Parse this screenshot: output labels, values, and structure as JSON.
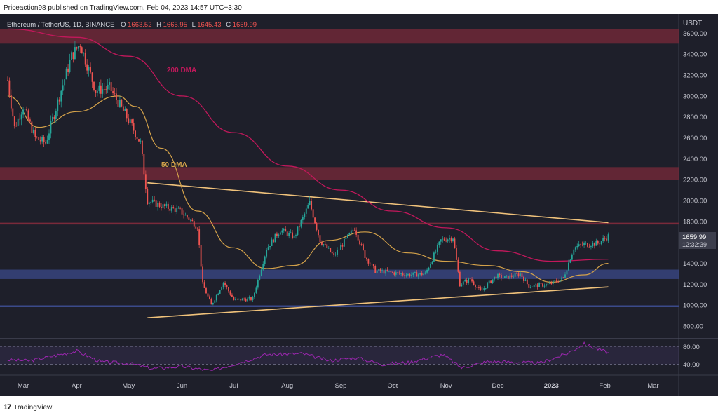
{
  "header": {
    "text": "Priceaction98 published on TradingView.com, Feb 04, 2023 14:57 UTC+3:30"
  },
  "symbol": {
    "name": "Ethereum / TetherUS, 1D, BINANCE",
    "o_label": "O",
    "o_value": "1663.52",
    "h_label": "H",
    "h_value": "1665.95",
    "l_label": "L",
    "l_value": "1645.43",
    "c_label": "C",
    "c_value": "1659.99"
  },
  "footer": {
    "logo_text": "17",
    "brand": "TradingView"
  },
  "colors": {
    "background": "#1e1f2a",
    "candle_up": "#26a69a",
    "candle_down": "#ef5350",
    "dma200": "#c2185b",
    "dma50": "#d4a24a",
    "trendline": "#f0c27b",
    "resistance_zone": "#7a2a3a",
    "support_zone": "#3b4a8a",
    "rsi": "#9c27b0"
  },
  "chart_data": {
    "type": "line",
    "title": "Ethereum / TetherUS, 1D, BINANCE",
    "price_unit": "USDT",
    "x_ticks": [
      "Mar",
      "Apr",
      "May",
      "Jun",
      "Jul",
      "Aug",
      "Sep",
      "Oct",
      "Nov",
      "Dec",
      "2023",
      "Feb",
      "Mar"
    ],
    "y_ticks": [
      800,
      1000,
      1200,
      1400,
      1600,
      1800,
      2000,
      2200,
      2400,
      2600,
      2800,
      3000,
      3200,
      3400,
      3600
    ],
    "ylim": [
      700,
      3750
    ],
    "last_price": {
      "value": "1659.99",
      "countdown": "12:32:39"
    },
    "price_series": {
      "name": "ETH/USDT close",
      "x": [
        "2022-02-20",
        "2022-02-24",
        "2022-03-01",
        "2022-03-08",
        "2022-03-14",
        "2022-03-22",
        "2022-03-29",
        "2022-04-03",
        "2022-04-12",
        "2022-04-20",
        "2022-04-30",
        "2022-05-08",
        "2022-05-12",
        "2022-05-20",
        "2022-05-31",
        "2022-06-10",
        "2022-06-13",
        "2022-06-18",
        "2022-06-25",
        "2022-07-01",
        "2022-07-12",
        "2022-07-20",
        "2022-07-28",
        "2022-08-05",
        "2022-08-14",
        "2022-08-20",
        "2022-08-28",
        "2022-09-09",
        "2022-09-15",
        "2022-09-21",
        "2022-10-01",
        "2022-10-10",
        "2022-10-20",
        "2022-10-29",
        "2022-11-05",
        "2022-11-09",
        "2022-11-15",
        "2022-11-21",
        "2022-11-30",
        "2022-12-05",
        "2022-12-14",
        "2022-12-19",
        "2022-12-31",
        "2023-01-08",
        "2023-01-14",
        "2023-01-20",
        "2023-01-28",
        "2023-02-03"
      ],
      "y": [
        3150,
        2700,
        2900,
        2600,
        2550,
        3000,
        3380,
        3500,
        3050,
        3080,
        2800,
        2550,
        2000,
        1950,
        1900,
        1750,
        1200,
        1000,
        1220,
        1050,
        1060,
        1540,
        1720,
        1650,
        1980,
        1620,
        1470,
        1740,
        1470,
        1330,
        1310,
        1290,
        1300,
        1620,
        1650,
        1200,
        1250,
        1130,
        1280,
        1260,
        1300,
        1180,
        1200,
        1260,
        1550,
        1580,
        1590,
        1660
      ]
    },
    "dma50": {
      "label": "50 DMA",
      "x": [
        "2022-02-20",
        "2022-03-10",
        "2022-04-01",
        "2022-04-25",
        "2022-05-05",
        "2022-05-20",
        "2022-06-10",
        "2022-06-30",
        "2022-07-20",
        "2022-08-05",
        "2022-08-25",
        "2022-09-15",
        "2022-10-10",
        "2022-11-01",
        "2022-11-25",
        "2022-12-15",
        "2023-01-01",
        "2023-01-20",
        "2023-02-03"
      ],
      "y": [
        3000,
        2700,
        2850,
        3000,
        2900,
        2500,
        1900,
        1550,
        1350,
        1380,
        1620,
        1700,
        1500,
        1420,
        1380,
        1320,
        1220,
        1290,
        1400
      ]
    },
    "dma200": {
      "label": "200 DMA",
      "x": [
        "2022-02-20",
        "2022-04-01",
        "2022-05-01",
        "2022-06-01",
        "2022-07-01",
        "2022-08-01",
        "2022-09-01",
        "2022-10-01",
        "2022-11-01",
        "2022-12-01",
        "2023-01-01",
        "2023-02-03"
      ],
      "y": [
        3640,
        3560,
        3380,
        3000,
        2650,
        2330,
        2100,
        1900,
        1740,
        1520,
        1420,
        1440
      ]
    },
    "zones": [
      {
        "kind": "resistance",
        "y_from": 3500,
        "y_to": 3640
      },
      {
        "kind": "resistance",
        "y_from": 2200,
        "y_to": 2320
      },
      {
        "kind": "resistance_line",
        "y": 1780
      },
      {
        "kind": "support",
        "y_from": 1250,
        "y_to": 1340
      },
      {
        "kind": "support_line",
        "y": 990
      }
    ],
    "trendlines": [
      {
        "x": [
          "2022-05-12",
          "2023-02-03"
        ],
        "y": [
          2170,
          1790
        ]
      },
      {
        "x": [
          "2022-05-12",
          "2023-02-03"
        ],
        "y": [
          880,
          1175
        ]
      }
    ],
    "rsi": {
      "y_ticks": [
        40,
        80
      ],
      "ylim": [
        20,
        90
      ],
      "x": [
        "2022-02-20",
        "2022-03-05",
        "2022-03-20",
        "2022-04-01",
        "2022-04-15",
        "2022-05-01",
        "2022-05-15",
        "2022-06-01",
        "2022-06-18",
        "2022-07-01",
        "2022-07-20",
        "2022-08-10",
        "2022-08-25",
        "2022-09-10",
        "2022-09-25",
        "2022-10-10",
        "2022-10-30",
        "2022-11-10",
        "2022-11-25",
        "2022-12-10",
        "2022-12-25",
        "2023-01-10",
        "2023-01-20",
        "2023-02-03"
      ],
      "y": [
        50,
        48,
        60,
        70,
        45,
        42,
        30,
        35,
        25,
        40,
        62,
        64,
        48,
        55,
        40,
        44,
        62,
        32,
        46,
        45,
        42,
        64,
        86,
        66
      ]
    }
  }
}
